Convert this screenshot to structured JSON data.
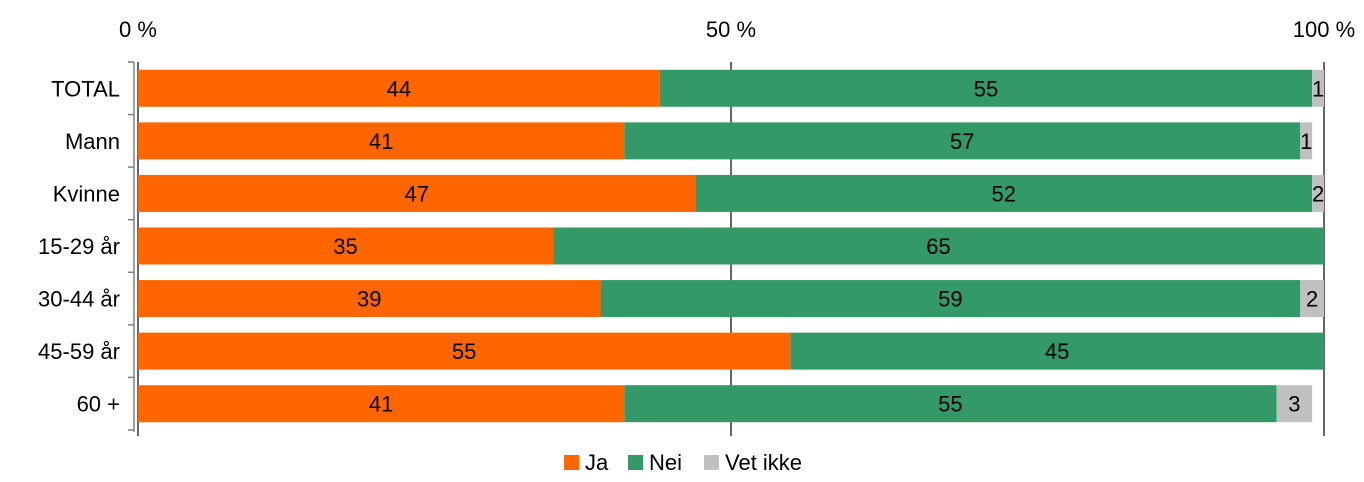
{
  "chart_data": {
    "type": "bar",
    "orientation": "horizontal",
    "stacked": true,
    "categories": [
      "TOTAL",
      "Mann",
      "Kvinne",
      "15-29 år",
      "30-44 år",
      "45-59 år",
      "60 +"
    ],
    "series": [
      {
        "name": "Ja",
        "color": "#ff6600",
        "values": [
          44,
          41,
          47,
          35,
          39,
          55,
          41
        ]
      },
      {
        "name": "Nei",
        "color": "#339966",
        "values": [
          55,
          57,
          52,
          65,
          59,
          45,
          55
        ]
      },
      {
        "name": "Vet ikke",
        "color": "#c0c0c0",
        "values": [
          1,
          1,
          2,
          0,
          2,
          0,
          3
        ]
      }
    ],
    "x_ticks": [
      "0 %",
      "50 %",
      "100 %"
    ],
    "xlim": [
      0,
      100
    ],
    "grid": "vertical at 50%",
    "legend_position": "bottom"
  }
}
